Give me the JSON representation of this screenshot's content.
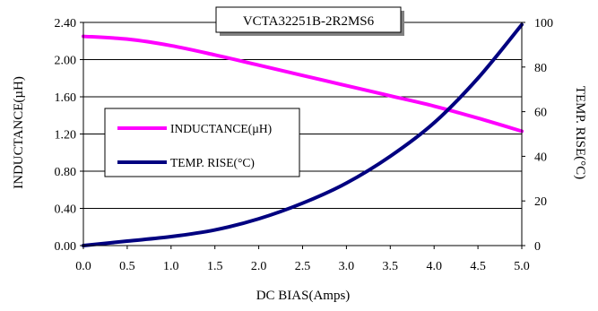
{
  "chart_data": {
    "type": "line",
    "title": "VCTA32251B-2R2MS6",
    "xlabel": "DC BIAS(Amps)",
    "ylabel_left": "INDUCTANCE(µH)",
    "ylabel_right": "TEMP. RISE(°C)",
    "xlim": [
      0,
      5
    ],
    "ylim_left": [
      0,
      2.4
    ],
    "ylim_right": [
      0,
      100
    ],
    "x_ticks": [
      "0.0",
      "0.5",
      "1.0",
      "1.5",
      "2.0",
      "2.5",
      "3.0",
      "3.5",
      "4.0",
      "4.5",
      "5.0"
    ],
    "y_left_ticks": [
      "0.00",
      "0.40",
      "0.80",
      "1.20",
      "1.60",
      "2.00",
      "2.40"
    ],
    "y_right_ticks": [
      "0",
      "20",
      "40",
      "60",
      "80",
      "100"
    ],
    "grid": "horizontal",
    "legend_position": "left-middle",
    "series": [
      {
        "name": "INDUCTANCE(µH)",
        "axis": "left",
        "color": "#ff00ff",
        "x": [
          0,
          0.5,
          1.0,
          1.5,
          2.0,
          2.5,
          3.0,
          3.5,
          4.0,
          4.5,
          5.0
        ],
        "y": [
          2.25,
          2.22,
          2.15,
          2.05,
          1.94,
          1.83,
          1.72,
          1.61,
          1.5,
          1.37,
          1.23
        ]
      },
      {
        "name": "TEMP. RISE(°C)",
        "axis": "right",
        "color": "#000080",
        "x": [
          0,
          0.5,
          1.0,
          1.5,
          2.0,
          2.5,
          3.0,
          3.5,
          4.0,
          4.5,
          5.0
        ],
        "y": [
          0,
          2,
          4,
          7,
          12,
          19,
          28,
          40,
          55,
          75,
          99
        ]
      }
    ]
  }
}
